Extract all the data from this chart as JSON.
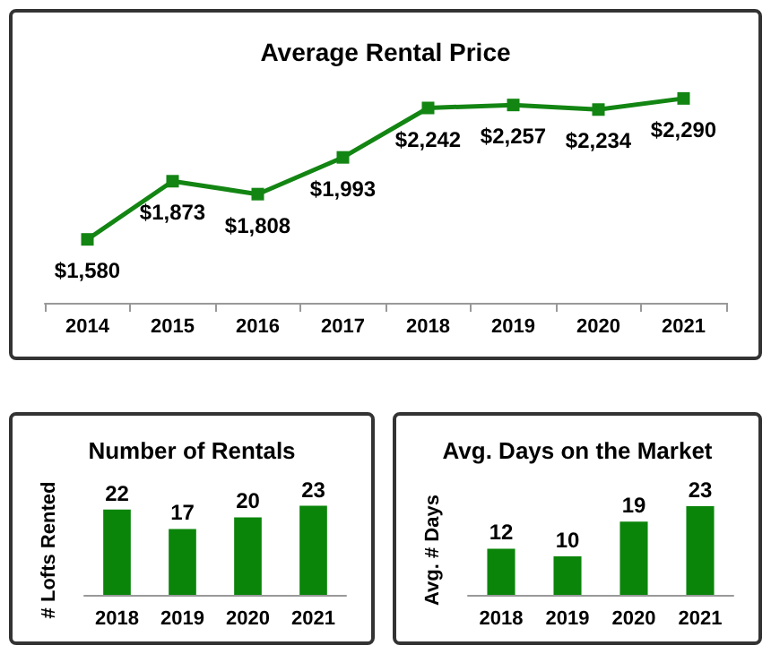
{
  "chart_data": [
    {
      "type": "line",
      "title": "Average Rental Price",
      "categories": [
        "2014",
        "2015",
        "2016",
        "2017",
        "2018",
        "2019",
        "2020",
        "2021"
      ],
      "series": [
        {
          "color": "#138513",
          "values": [
            1580,
            1873,
            1808,
            1993,
            2242,
            2257,
            2234,
            2290
          ],
          "value_labels": [
            "$1,580",
            "$1,873",
            "$1,808",
            "$1,993",
            "$2,242",
            "$2,257",
            "$2,234",
            "$2,290"
          ]
        }
      ],
      "marker": "square",
      "tick_labels": "x"
    },
    {
      "type": "bar",
      "title": "Number of Rentals",
      "ylabel": "# Lofts Rented",
      "categories": [
        "2018",
        "2019",
        "2020",
        "2021"
      ],
      "values": [
        22,
        17,
        20,
        23
      ],
      "color": "#0a850a",
      "data_labels": true,
      "tick_labels": "x"
    },
    {
      "type": "bar",
      "title": "Avg. Days on the Market",
      "ylabel": "Avg. # Days",
      "categories": [
        "2018",
        "2019",
        "2020",
        "2021"
      ],
      "values": [
        12,
        10,
        19,
        23
      ],
      "color": "#0a850a",
      "data_labels": true,
      "tick_labels": "x"
    }
  ]
}
